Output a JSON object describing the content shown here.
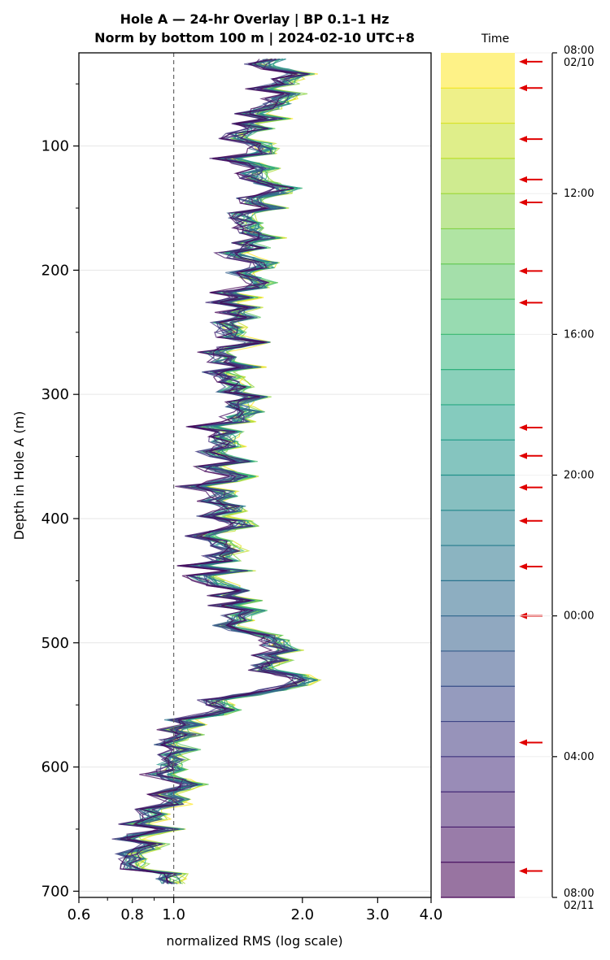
{
  "chart_data": {
    "type": "line",
    "title": "Hole A — 24-hr Overlay  |  BP 0.1–1 Hz",
    "subtitle": "Norm by bottom 100 m  |  2024-02-10 UTC+8",
    "xlabel": "normalized RMS  (log scale)",
    "ylabel": "Depth in Hole A (m)",
    "x_scale": "log",
    "xlim": [
      0.6,
      4.0
    ],
    "ylim": [
      705,
      25
    ],
    "x_ticks": [
      0.6,
      0.8,
      1.0,
      2.0,
      3.0,
      4.0
    ],
    "x_tick_labels": [
      "0.6",
      "0.8",
      "1.0",
      "2.0",
      "3.0",
      "4.0"
    ],
    "y_ticks": [
      100,
      200,
      300,
      400,
      500,
      600,
      700
    ],
    "y_tick_labels": [
      "100",
      "200",
      "300",
      "400",
      "500",
      "600",
      "700"
    ],
    "reference_line_x": 1.0,
    "grid": "horizontal",
    "depth_profile": {
      "depth": [
        30,
        45,
        60,
        70,
        80,
        90,
        100,
        115,
        130,
        140,
        160,
        180,
        200,
        220,
        240,
        260,
        280,
        300,
        320,
        340,
        360,
        380,
        400,
        420,
        440,
        460,
        480,
        500,
        515,
        528,
        535,
        545,
        560,
        580,
        600,
        620,
        640,
        660,
        680,
        700
      ],
      "rms": [
        1.65,
        1.75,
        1.7,
        1.55,
        1.6,
        1.55,
        1.45,
        1.5,
        1.7,
        1.55,
        1.6,
        1.45,
        1.5,
        1.45,
        1.4,
        1.4,
        1.45,
        1.45,
        1.35,
        1.3,
        1.3,
        1.25,
        1.3,
        1.25,
        1.25,
        1.35,
        1.45,
        1.6,
        1.6,
        2.1,
        1.8,
        1.25,
        1.15,
        1.0,
        1.05,
        0.95,
        0.9,
        0.88,
        0.9,
        0.95
      ],
      "series_count": 24
    },
    "colorbar": {
      "label": "Time",
      "segments": 24,
      "tick_labels": [
        {
          "hours": 0,
          "line1": "08:00",
          "line2": "02/10"
        },
        {
          "hours": 4,
          "line1": "12:00",
          "line2": ""
        },
        {
          "hours": 8,
          "line1": "16:00",
          "line2": ""
        },
        {
          "hours": 12,
          "line1": "20:00",
          "line2": ""
        },
        {
          "hours": 16,
          "line1": "00:00",
          "line2": ""
        },
        {
          "hours": 20,
          "line1": "04:00",
          "line2": ""
        },
        {
          "hours": 24,
          "line1": "08:00",
          "line2": "02/11"
        }
      ],
      "event_arrows_hours": [
        0.25,
        1.0,
        2.45,
        3.6,
        4.25,
        6.2,
        7.1,
        10.65,
        11.45,
        12.35,
        13.3,
        14.6,
        16.0,
        19.6,
        23.25
      ]
    }
  }
}
